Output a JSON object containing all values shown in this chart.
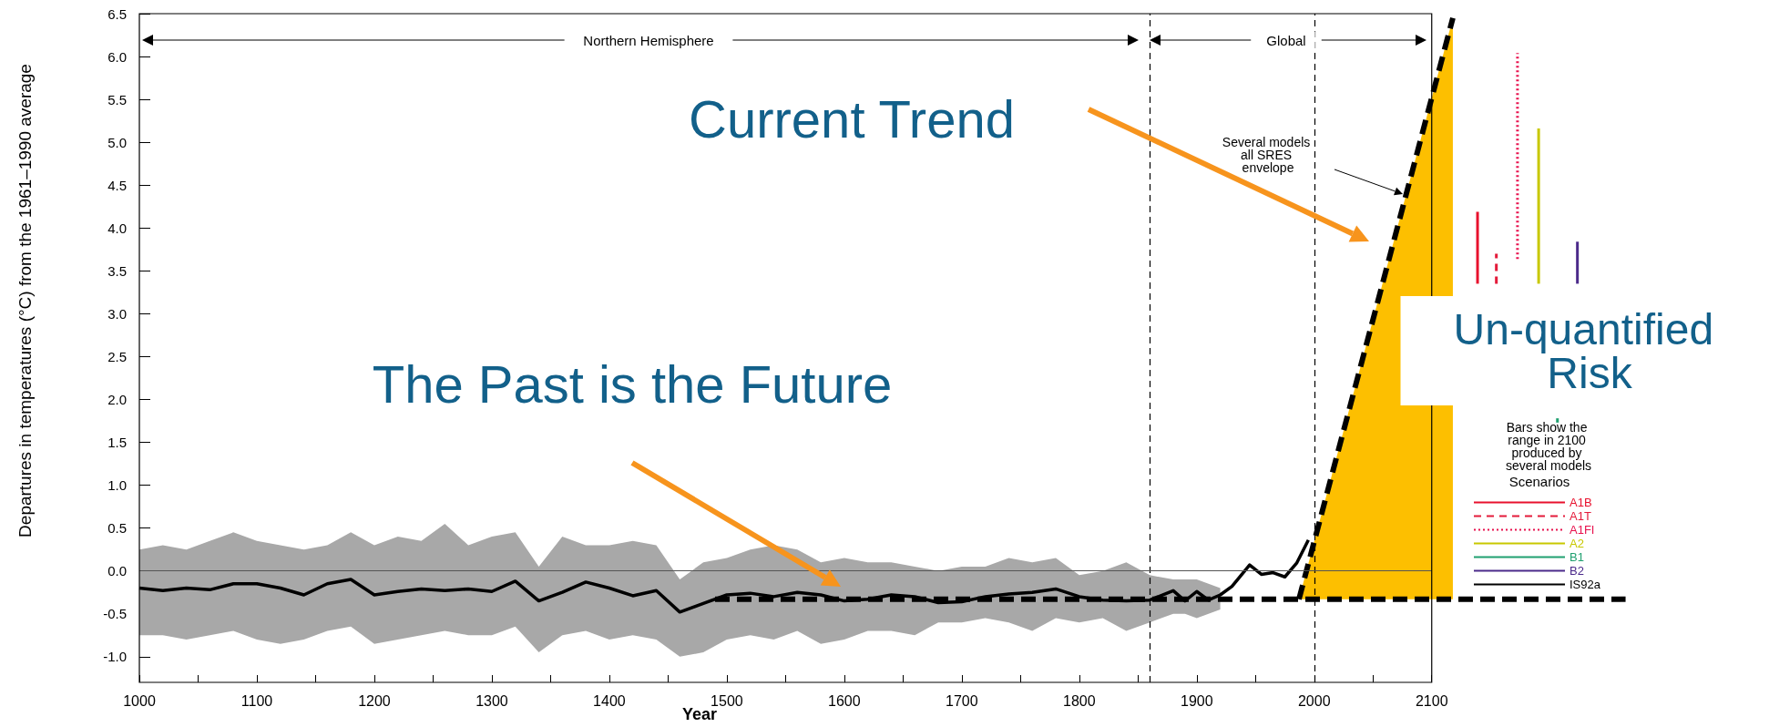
{
  "chart_data": {
    "type": "line",
    "xlabel": "Year",
    "ylabel": "Departures in temperatures (°C) from the 1961–1990 average",
    "legend_title": "Scenarios",
    "legend": "right",
    "grid": false,
    "marker": "none",
    "xlim": [
      1000,
      2270
    ],
    "ylim": [
      -1.3,
      6.5
    ],
    "xticks": [
      1000,
      {
        "value": 1050,
        "label": null
      },
      1100,
      {
        "value": 1150,
        "label": null
      },
      1200,
      {
        "value": 1250,
        "label": null
      },
      1300,
      {
        "value": 1350,
        "label": null
      },
      1400,
      {
        "value": 1450,
        "label": null
      },
      1500,
      {
        "value": 1550,
        "label": null
      },
      1600,
      {
        "value": 1650,
        "label": null
      },
      1700,
      {
        "value": 1750,
        "label": null
      },
      1800,
      {
        "value": 1850,
        "label": null
      },
      1900,
      {
        "value": 1950,
        "label": null
      },
      2000,
      {
        "value": 2050,
        "label": null
      },
      2100
    ],
    "yticks": [
      {
        "value": -1,
        "label": "-1.0"
      },
      -0.5,
      {
        "value": 0,
        "label": "0.0"
      },
      0.5,
      {
        "value": 1,
        "label": "1.0"
      },
      1.5,
      {
        "value": 2,
        "label": "2.0"
      },
      2.5,
      {
        "value": 3,
        "label": "3.0"
      },
      3.5,
      {
        "value": 4,
        "label": "4.0"
      },
      4.5,
      {
        "value": 5,
        "label": "5.0"
      },
      5.5,
      {
        "value": 6,
        "label": "6.0"
      },
      6.5
    ],
    "series": [
      {
        "color": "#000000",
        "line_style": "solid",
        "x": [
          1000,
          1020,
          1040,
          1060,
          1080,
          1100,
          1120,
          1140,
          1160,
          1180,
          1200,
          1220,
          1240,
          1260,
          1280,
          1300,
          1320,
          1340,
          1360,
          1380,
          1400,
          1420,
          1440,
          1460,
          1480,
          1500,
          1520,
          1540,
          1560,
          1580,
          1600,
          1620,
          1640,
          1660,
          1680,
          1700,
          1720,
          1740,
          1760,
          1780,
          1800,
          1820,
          1840,
          1860,
          1880,
          1890,
          1900,
          1910,
          1920,
          1930,
          1945,
          1955,
          1965,
          1975,
          1985,
          1995
        ],
        "values": [
          -0.2,
          -0.23,
          -0.2,
          -0.22,
          -0.15,
          -0.15,
          -0.2,
          -0.28,
          -0.15,
          -0.1,
          -0.28,
          -0.24,
          -0.21,
          -0.23,
          -0.21,
          -0.24,
          -0.12,
          -0.35,
          -0.25,
          -0.13,
          -0.2,
          -0.29,
          -0.23,
          -0.48,
          -0.38,
          -0.28,
          -0.26,
          -0.3,
          -0.25,
          -0.28,
          -0.35,
          -0.33,
          -0.28,
          -0.3,
          -0.37,
          -0.36,
          -0.3,
          -0.27,
          -0.25,
          -0.21,
          -0.3,
          -0.34,
          -0.35,
          -0.34,
          -0.23,
          -0.35,
          -0.24,
          -0.34,
          -0.28,
          -0.18,
          0.07,
          -0.04,
          -0.02,
          -0.07,
          0.09,
          0.36
        ],
        "upper": [
          0.25,
          0.3,
          0.25,
          0.35,
          0.45,
          0.35,
          0.3,
          0.25,
          0.3,
          0.45,
          0.3,
          0.4,
          0.35,
          0.55,
          0.3,
          0.4,
          0.45,
          0.05,
          0.4,
          0.3,
          0.3,
          0.35,
          0.3,
          -0.1,
          0.1,
          0.15,
          0.25,
          0.3,
          0.25,
          0.1,
          0.15,
          0.1,
          0.1,
          0.05,
          0.0,
          0.05,
          0.05,
          0.15,
          0.1,
          0.15,
          -0.05,
          0.0,
          0.1,
          -0.05,
          -0.1,
          -0.1,
          -0.1,
          -0.15,
          -0.2,
          null,
          null,
          null,
          null,
          null,
          null,
          null
        ],
        "lower": [
          -0.75,
          -0.75,
          -0.8,
          -0.75,
          -0.7,
          -0.8,
          -0.85,
          -0.8,
          -0.7,
          -0.65,
          -0.85,
          -0.8,
          -0.75,
          -0.7,
          -0.75,
          -0.75,
          -0.65,
          -0.95,
          -0.75,
          -0.7,
          -0.8,
          -0.75,
          -0.8,
          -1.0,
          -0.95,
          -0.8,
          -0.75,
          -0.8,
          -0.7,
          -0.85,
          -0.8,
          -0.7,
          -0.7,
          -0.75,
          -0.6,
          -0.6,
          -0.55,
          -0.6,
          -0.7,
          -0.55,
          -0.6,
          -0.55,
          -0.7,
          -0.6,
          -0.5,
          -0.5,
          -0.55,
          -0.5,
          -0.45,
          null,
          null,
          null,
          null,
          null,
          null,
          null
        ]
      },
      {
        "color": "#000000",
        "line_style": "dashed",
        "x": [
          1490,
          2265
        ],
        "values": [
          -0.33,
          -0.33
        ]
      },
      {
        "color": "#000000",
        "line_style": "dashed",
        "x": [
          1987,
          2118
        ],
        "values": [
          -0.33,
          6.45
        ],
        "lower": [
          -0.33,
          -0.33
        ],
        "upper": [
          -0.33,
          6.45
        ]
      },
      {
        "name": "A1B",
        "color": "#e8112d",
        "line_style": "solid",
        "x": [
          2139,
          2139
        ],
        "values": [
          3.35,
          4.19
        ]
      },
      {
        "name": "A1T",
        "color": "#e41b3a",
        "line_style": "dashed",
        "x": [
          2155,
          2155
        ],
        "values": [
          3.35,
          3.7
        ]
      },
      {
        "name": "A1FI",
        "color": "#e8114d",
        "line_style": "dotted",
        "x": [
          2173,
          2173
        ],
        "values": [
          3.64,
          6.04
        ]
      },
      {
        "name": "A2",
        "color": "#c8c800",
        "line_style": "solid",
        "x": [
          2191,
          2191
        ],
        "values": [
          3.35,
          5.16
        ]
      },
      {
        "name": "B1",
        "color": "#20a070",
        "line_style": "solid",
        "x": [
          2207,
          2207
        ],
        "values": [
          1.73,
          1.78
        ]
      },
      {
        "name": "B2",
        "color": "#4b2a8a",
        "line_style": "solid",
        "x": [
          2224,
          2224
        ],
        "values": [
          3.35,
          3.84
        ]
      },
      {
        "name": "IS92a",
        "color": "#000000",
        "line_style": "solid"
      }
    ],
    "ref_lines": [
      {
        "axis": "x",
        "value": 1860,
        "label": null,
        "line_style": "dashed",
        "color": "#000000"
      },
      {
        "axis": "x",
        "value": 2000,
        "label": null,
        "line_style": "dashed",
        "color": "#000000"
      },
      {
        "axis": "y",
        "value": 0,
        "label": null,
        "line_style": "solid",
        "color": "#555555"
      }
    ],
    "annotations": [
      "Current Trend",
      "The Past is the Future",
      "Several models all SRES envelope",
      "Un-quantified Risk",
      "Bars show the range in 2100 produced by several models",
      "Northern Hemisphere",
      "Global"
    ]
  }
}
